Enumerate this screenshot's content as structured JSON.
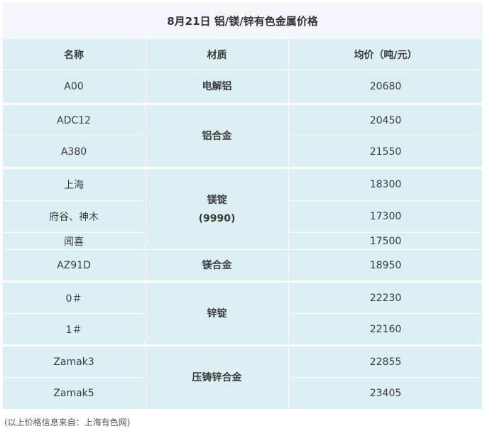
{
  "title": "8月21日 铝/镁/锌有色金属价格",
  "headers": [
    "名称",
    "材质",
    "均价（吨/元）"
  ],
  "rows": [
    {
      "name": "A00",
      "price": "20680"
    },
    {
      "name": "ADC12",
      "price": "20450"
    },
    {
      "name": "A380",
      "price": "21550"
    },
    {
      "name": "上海",
      "price": "18300"
    },
    {
      "name": "府谷、神木",
      "price": "17300"
    },
    {
      "name": "闻喜",
      "price": "17500"
    },
    {
      "name": "AZ91D",
      "price": "18950"
    },
    {
      "name": "0＃",
      "price": "22230"
    },
    {
      "name": "1＃",
      "price": "22160"
    },
    {
      "name": "Zamak3",
      "price": "22855"
    },
    {
      "name": "Zamak5",
      "price": "23405"
    }
  ],
  "materials": {
    "electrolytic_al": "电解铝",
    "al_alloy": "铝合金",
    "mg_ingot": "镁锭",
    "mg_ingot_grade": "(9990)",
    "mg_alloy": "镁合金",
    "zn_ingot": "锌锭",
    "die_cast_zn_alloy": "压铸锌合金"
  },
  "footer": "(以上价格信息来自：上海有色网)"
}
